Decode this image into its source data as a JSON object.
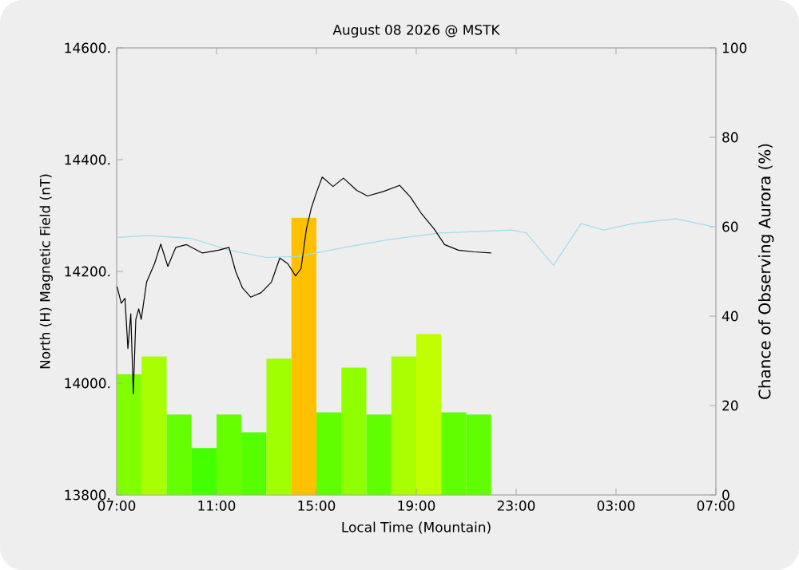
{
  "chart_data": {
    "type": "line",
    "title": "August 08 2026 @ MSTK",
    "xlabel": "Local Time (Mountain)",
    "ylabel": "North (H) Magnetic Field (nT)",
    "y2label": "Chance of Observing Aurora (%)",
    "xlim": [
      "2026-08-08T07:00",
      "2026-08-09T07:00"
    ],
    "xticks": [
      {
        "value": "2026-08-08T07:00",
        "label": "07:00"
      },
      {
        "value": "2026-08-08T11:00",
        "label": "11:00"
      },
      {
        "value": "2026-08-08T15:00",
        "label": "15:00"
      },
      {
        "value": "2026-08-08T19:00",
        "label": "19:00"
      },
      {
        "value": "2026-08-08T23:00",
        "label": "23:00"
      },
      {
        "value": "2026-08-09T03:00",
        "label": "03:00"
      },
      {
        "value": "2026-08-09T07:00",
        "label": "07:00"
      }
    ],
    "ylim": [
      13800,
      14600
    ],
    "yticks": [
      {
        "value": 13800,
        "label": "13800."
      },
      {
        "value": 14000,
        "label": "14000."
      },
      {
        "value": 14200,
        "label": "14200."
      },
      {
        "value": 14400,
        "label": "14400."
      },
      {
        "value": 14600,
        "label": "14600."
      }
    ],
    "y2lim": [
      0,
      100
    ],
    "y2ticks": [
      0,
      20,
      40,
      60,
      80,
      100
    ],
    "series": [
      {
        "type": "bar",
        "axis": "y2",
        "x": [
          "2026-08-08T07:30",
          "2026-08-08T08:30",
          "2026-08-08T09:30",
          "2026-08-08T10:30",
          "2026-08-08T11:30",
          "2026-08-08T12:30",
          "2026-08-08T13:30",
          "2026-08-08T14:30",
          "2026-08-08T15:30",
          "2026-08-08T16:30",
          "2026-08-08T17:30",
          "2026-08-08T18:30",
          "2026-08-08T19:30",
          "2026-08-08T20:30",
          "2026-08-08T21:30"
        ],
        "values": [
          27,
          31,
          18,
          10.5,
          18,
          14,
          30.5,
          62,
          18.5,
          28.5,
          18,
          31,
          36,
          18.5,
          18
        ],
        "colors": [
          "#80ff00",
          "#a8ff00",
          "#66ff00",
          "#44ff00",
          "#66ff00",
          "#55ff00",
          "#a0ff00",
          "#ffc000",
          "#60ff00",
          "#90ff00",
          "#60ff00",
          "#a8ff00",
          "#c0ff00",
          "#60ff00",
          "#60ff00"
        ]
      },
      {
        "color": "#a0dcee",
        "x": [
          "2026-08-08T07:00",
          "2026-08-08T08:18",
          "2026-08-08T10:00",
          "2026-08-08T11:30",
          "2026-08-08T13:00",
          "2026-08-08T14:18",
          "2026-08-08T16:00",
          "2026-08-08T17:54",
          "2026-08-08T20:00",
          "2026-08-08T20:12",
          "2026-08-08T22:48",
          "2026-08-08T23:24",
          "2026-08-09T00:30",
          "2026-08-09T01:36",
          "2026-08-09T02:30",
          "2026-08-09T03:42",
          "2026-08-09T05:24",
          "2026-08-09T07:00"
        ],
        "values": [
          14261,
          14264,
          14259,
          14238,
          14225,
          14227,
          14242,
          14257,
          14269,
          14269,
          14274,
          14269,
          14211,
          14286,
          14274,
          14286,
          14294,
          14279
        ]
      },
      {
        "color": "#000000",
        "x": [
          "2026-08-08T07:01",
          "2026-08-08T07:11",
          "2026-08-08T07:20",
          "2026-08-08T07:27",
          "2026-08-08T07:34",
          "2026-08-08T07:40",
          "2026-08-08T07:46",
          "2026-08-08T07:53",
          "2026-08-08T07:59",
          "2026-08-08T08:12",
          "2026-08-08T08:31",
          "2026-08-08T08:46",
          "2026-08-08T09:03",
          "2026-08-08T09:22",
          "2026-08-08T09:48",
          "2026-08-08T10:26",
          "2026-08-08T11:05",
          "2026-08-08T11:30",
          "2026-08-08T11:46",
          "2026-08-08T12:02",
          "2026-08-08T12:22",
          "2026-08-08T12:47",
          "2026-08-08T13:12",
          "2026-08-08T13:32",
          "2026-08-08T13:51",
          "2026-08-08T14:10",
          "2026-08-08T14:23",
          "2026-08-08T14:36",
          "2026-08-08T14:48",
          "2026-08-08T15:01",
          "2026-08-08T15:14",
          "2026-08-08T15:40",
          "2026-08-08T16:05",
          "2026-08-08T16:37",
          "2026-08-08T17:03",
          "2026-08-08T17:41",
          "2026-08-08T18:20",
          "2026-08-08T18:46",
          "2026-08-08T19:11",
          "2026-08-08T19:43",
          "2026-08-08T20:08",
          "2026-08-08T20:41",
          "2026-08-08T21:19",
          "2026-08-08T22:00"
        ],
        "values": [
          14173,
          14143,
          14152,
          14062,
          14124,
          13981,
          14114,
          14133,
          14114,
          14181,
          14214,
          14249,
          14209,
          14243,
          14248,
          14233,
          14238,
          14243,
          14200,
          14171,
          14154,
          14162,
          14181,
          14224,
          14214,
          14192,
          14205,
          14276,
          14314,
          14343,
          14369,
          14352,
          14367,
          14345,
          14335,
          14343,
          14354,
          14333,
          14305,
          14276,
          14248,
          14238,
          14235,
          14233
        ]
      }
    ]
  }
}
